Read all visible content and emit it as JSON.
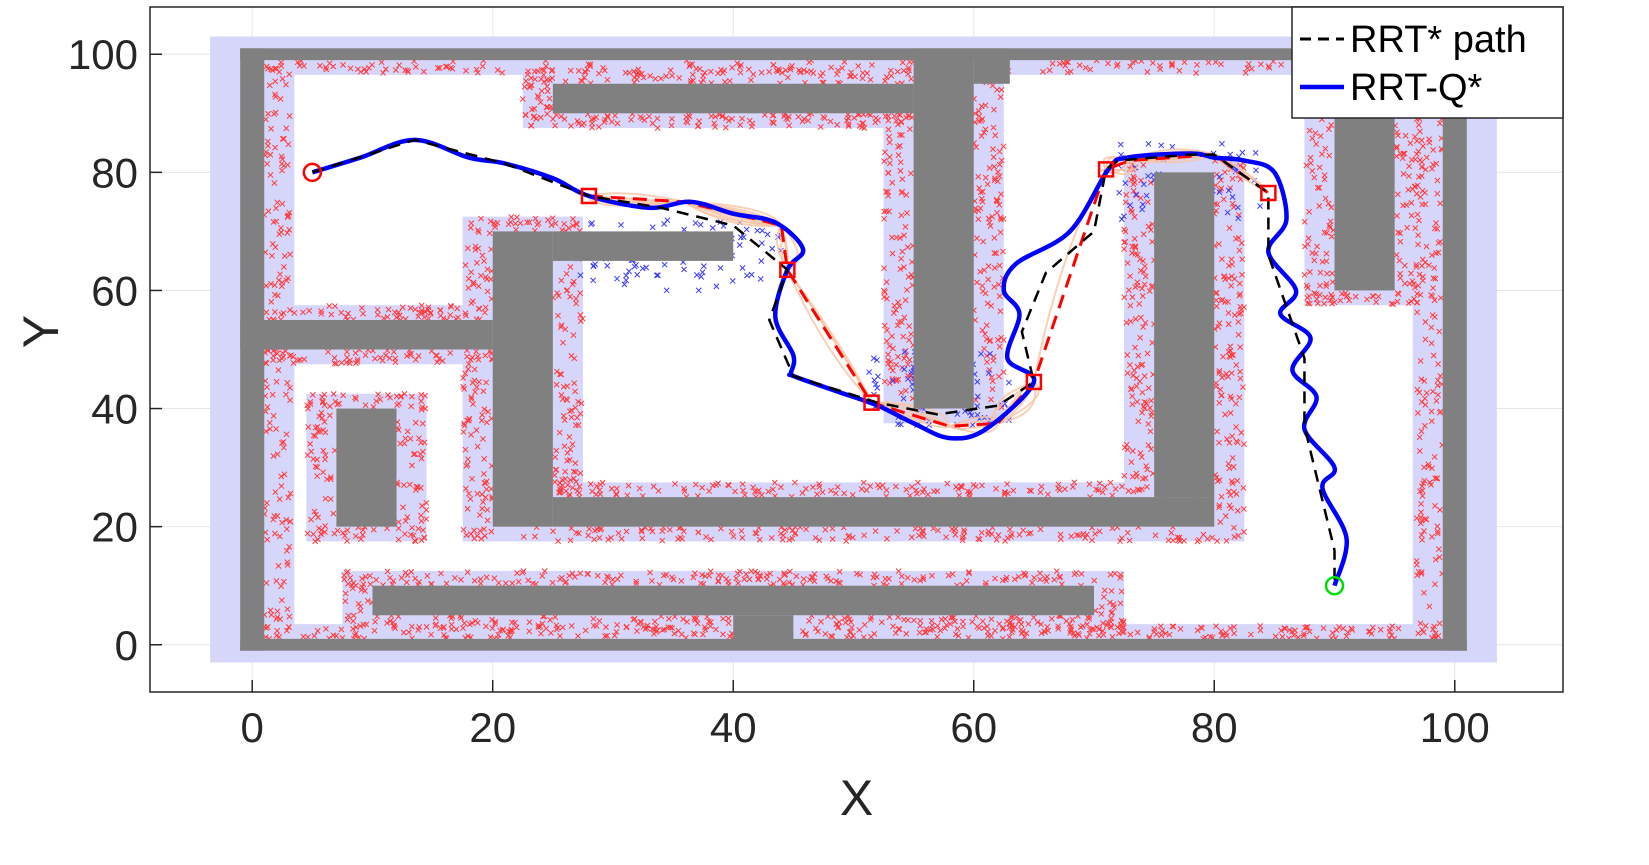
{
  "chart_data": {
    "type": "line",
    "xlabel": "X",
    "ylabel": "Y",
    "xlim": [
      -8.5,
      109
    ],
    "ylim": [
      -8,
      108
    ],
    "xticks": [
      0,
      20,
      40,
      60,
      80,
      100
    ],
    "yticks": [
      0,
      20,
      40,
      60,
      80,
      100
    ],
    "grid": true,
    "legend_position": "top-right",
    "colors": {
      "obstacle": "#808080",
      "inflation": "#d6d6fa",
      "samples_red": "#ff3b3b",
      "samples_blue": "#3b3bff",
      "tree": "#f7c4a4",
      "rrt_star": "#000000",
      "rrt_q": "#0000ff",
      "waypoint": "#ff0000",
      "start": "#ff0000",
      "goal": "#00dd00"
    },
    "obstacles": [
      {
        "x0": -1,
        "x1": 101,
        "y0": -1,
        "y1": 1
      },
      {
        "x0": -1,
        "x1": 101,
        "y0": 99,
        "y1": 101
      },
      {
        "x0": -1,
        "x1": 1,
        "y0": -1,
        "y1": 101
      },
      {
        "x0": 99,
        "x1": 101,
        "y0": -1,
        "y1": 101
      },
      {
        "x0": 25,
        "x1": 55,
        "y0": 90,
        "y1": 95
      },
      {
        "x0": 55,
        "x1": 60,
        "y0": 40,
        "y1": 101
      },
      {
        "x0": 60,
        "x1": 63,
        "y0": 95,
        "y1": 101
      },
      {
        "x0": -1,
        "x1": 20,
        "y0": 50,
        "y1": 55
      },
      {
        "x0": 20,
        "x1": 25,
        "y0": 20,
        "y1": 70
      },
      {
        "x0": 25,
        "x1": 40,
        "y0": 65,
        "y1": 70
      },
      {
        "x0": 25,
        "x1": 80,
        "y0": 20,
        "y1": 25
      },
      {
        "x0": 75,
        "x1": 80,
        "y0": 25,
        "y1": 80
      },
      {
        "x0": 7,
        "x1": 12,
        "y0": 20,
        "y1": 40
      },
      {
        "x0": 10,
        "x1": 70,
        "y0": 5,
        "y1": 10
      },
      {
        "x0": 40,
        "x1": 45,
        "y0": 0,
        "y1": 5
      },
      {
        "x0": 90,
        "x1": 95,
        "y0": 60,
        "y1": 90
      }
    ],
    "inflation_zones": [
      {
        "x0": -3.5,
        "x1": 103.5,
        "y0": -3,
        "y1": 103
      },
      {
        "x0": 22.5,
        "x1": 57.5,
        "y0": 87.5,
        "y1": 97.5
      },
      {
        "x0": 52.5,
        "x1": 62.5,
        "y0": 37.5,
        "y1": 101
      },
      {
        "x0": 17.5,
        "x1": 27.5,
        "y0": 17.5,
        "y1": 72.5
      },
      {
        "x0": 22.5,
        "x1": 82.5,
        "y0": 17.5,
        "y1": 27.5
      },
      {
        "x0": 72.5,
        "x1": 82.5,
        "y0": 22.5,
        "y1": 82.5
      },
      {
        "x0": 4.5,
        "x1": 14.5,
        "y0": 17.5,
        "y1": 42.5
      },
      {
        "x0": 7.5,
        "x1": 72.5,
        "y0": 2.5,
        "y1": 12.5
      },
      {
        "x0": 87.5,
        "x1": 97.5,
        "y0": 57.5,
        "y1": 92.5
      },
      {
        "x0": 1,
        "x1": 22.5,
        "y0": 47.5,
        "y1": 57.5
      }
    ],
    "series": [
      {
        "name": "RRT* path",
        "style": "dashed",
        "x": [
          5,
          13.5,
          21,
          28,
          34,
          40,
          44.5,
          43,
          45,
          52,
          57,
          62,
          65,
          64,
          66,
          70,
          71,
          72,
          78,
          80,
          84.5,
          84.5,
          87.5,
          87.5,
          90,
          90
        ],
        "y": [
          80,
          85.5,
          81.5,
          76,
          74,
          71,
          63.5,
          55,
          45.5,
          41,
          39,
          40.5,
          44.5,
          53,
          63,
          70,
          80.5,
          82,
          83,
          83,
          76.5,
          66,
          48.5,
          37,
          16,
          10
        ]
      },
      {
        "name": "RRT-Q*",
        "style": "solid",
        "x": [
          5,
          9,
          13.5,
          18,
          21,
          25,
          28,
          33,
          36.5,
          40,
          43.5,
          45.8,
          44.5,
          43.5,
          45,
          44.8,
          45,
          48.5,
          52,
          55,
          58,
          61,
          65,
          62.8,
          63.8,
          62.5,
          63.5,
          68,
          71.2,
          72.8,
          78,
          80,
          82.5,
          85,
          86,
          84.5,
          86.8,
          85.5,
          88,
          86.5,
          88.5,
          87.5,
          90,
          89,
          91,
          90
        ],
        "y": [
          80,
          82.5,
          85.5,
          82.5,
          81.5,
          79,
          76,
          74,
          75,
          73,
          71.5,
          67,
          63.5,
          55.5,
          49,
          46,
          45.5,
          43,
          40.5,
          37.5,
          35,
          36.5,
          44.5,
          48.5,
          56,
          60,
          64.5,
          70,
          80.5,
          82.5,
          83.2,
          82.5,
          82,
          80,
          72,
          66.5,
          60,
          56,
          52,
          46.5,
          42,
          36.5,
          30,
          26.5,
          18,
          10
        ]
      }
    ],
    "waypoints": {
      "x": [
        28,
        44.5,
        51.5,
        65,
        71,
        84.5
      ],
      "y": [
        76,
        63.5,
        41,
        44.5,
        80.5,
        76.5
      ]
    },
    "waypoint_dashed_x": [
      28,
      36,
      44,
      44.5,
      51.5,
      58,
      62,
      65,
      71,
      73,
      80,
      84.5
    ],
    "waypoint_dashed_y": [
      76,
      75,
      71,
      63.5,
      41,
      37,
      37.5,
      44.5,
      80.5,
      82,
      83,
      76.5
    ],
    "start": {
      "x": 5,
      "y": 80
    },
    "goal": {
      "x": 90,
      "y": 10
    }
  }
}
